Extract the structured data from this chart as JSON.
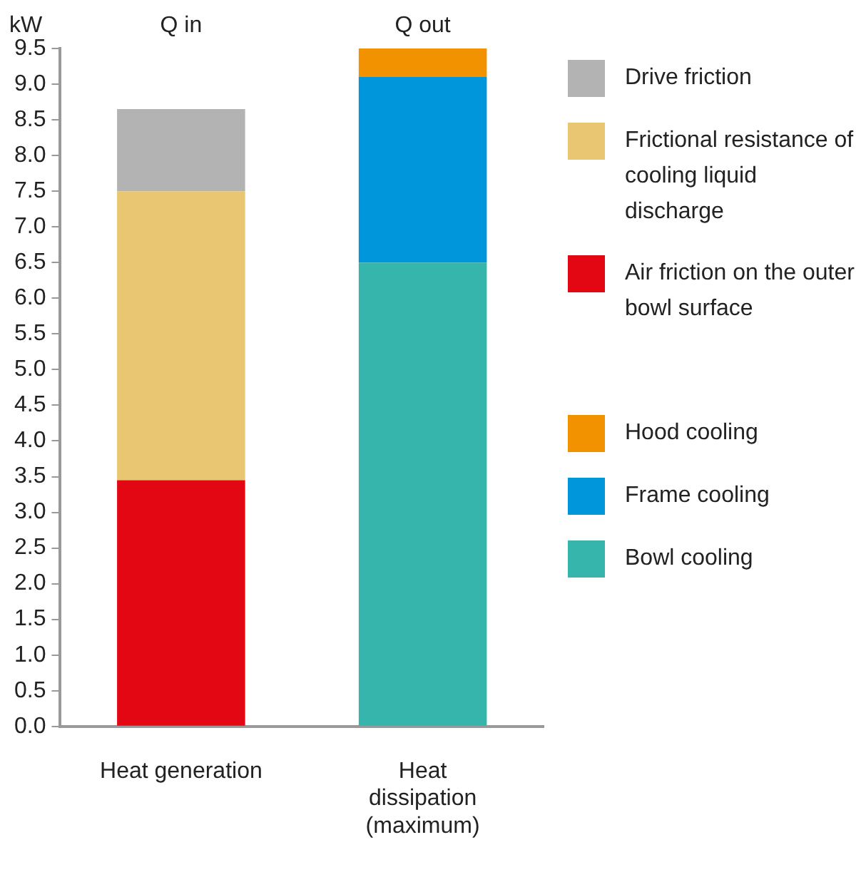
{
  "chart_data": {
    "type": "bar",
    "stacked": true,
    "ylabel": "kW",
    "categories": [
      "Heat generation",
      "Heat dissipation (maximum)"
    ],
    "series": [
      {
        "name": "Air friction on the outer bowl surface",
        "color": "#e30613",
        "values": [
          3.45,
          null
        ]
      },
      {
        "name": "Frictional resistance of cooling liquid discharge",
        "color": "#e8c672",
        "values": [
          4.05,
          null
        ]
      },
      {
        "name": "Drive friction",
        "color": "#b3b3b3",
        "values": [
          1.15,
          null
        ]
      },
      {
        "name": "Bowl cooling",
        "color": "#35b5ac",
        "values": [
          null,
          6.5
        ]
      },
      {
        "name": "Frame cooling",
        "color": "#0096db",
        "values": [
          null,
          2.6
        ]
      },
      {
        "name": "Hood cooling",
        "color": "#f39200",
        "values": [
          null,
          0.4
        ]
      }
    ],
    "ylim": [
      0,
      9.5
    ],
    "yticks": [
      {
        "value": 0,
        "label": "0.0"
      },
      {
        "value": 0.5,
        "label": "0.5"
      },
      {
        "value": 1,
        "label": "1.0"
      },
      {
        "value": 1.5,
        "label": "1.5"
      },
      {
        "value": 2,
        "label": "2.0"
      },
      {
        "value": 2.5,
        "label": "2.5"
      },
      {
        "value": 3,
        "label": "3.0"
      },
      {
        "value": 3.5,
        "label": "3.5"
      },
      {
        "value": 4,
        "label": "4.0"
      },
      {
        "value": 4.5,
        "label": "4.5"
      },
      {
        "value": 5,
        "label": "5.0"
      },
      {
        "value": 5.5,
        "label": "5.5"
      },
      {
        "value": 6,
        "label": "6.0"
      },
      {
        "value": 6.5,
        "label": "6.5"
      },
      {
        "value": 7,
        "label": "7.0"
      },
      {
        "value": 7.5,
        "label": "7.5"
      },
      {
        "value": 8,
        "label": "8.0"
      },
      {
        "value": 8.5,
        "label": "8.5"
      },
      {
        "value": 9,
        "label": "9.0"
      },
      {
        "value": 9.5,
        "label": "9.5"
      }
    ],
    "grid": false,
    "legend": "right",
    "annotations": [
      "Q in",
      "Q out"
    ]
  }
}
